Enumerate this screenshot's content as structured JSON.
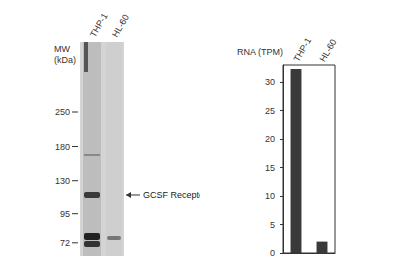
{
  "blot": {
    "mw_label": "MW (kDa)",
    "lanes": [
      "THP-1",
      "HL-60"
    ],
    "mw_markers": [
      250,
      180,
      130,
      95,
      72
    ],
    "annotation": "GCSF Receptor"
  },
  "chart_data": {
    "type": "bar",
    "y_label": "RNA (TPM)",
    "categories": [
      "THP-1",
      "HL-60"
    ],
    "values": [
      32.3,
      2.0
    ],
    "color": "#3a3a3a",
    "ylim": [
      0,
      33
    ],
    "yticks": [
      0,
      5,
      10,
      15,
      20,
      25,
      30
    ],
    "grid": false
  }
}
